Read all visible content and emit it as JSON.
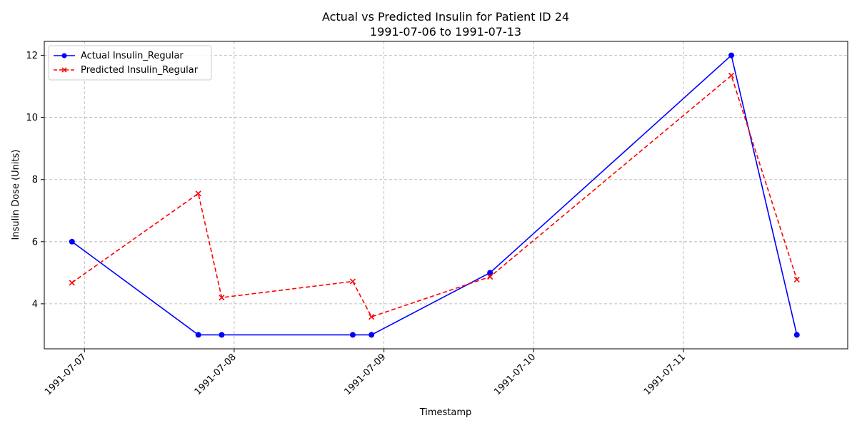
{
  "chart_data": {
    "type": "line",
    "title": "Actual vs Predicted Insulin for Patient ID 24",
    "subtitle": "1991-07-06 to 1991-07-13",
    "xlabel": "Timestamp",
    "ylabel": "Insulin Dose (Units)",
    "xlim": [
      "1991-07-06 17:34",
      "1991-07-12 02:19"
    ],
    "ylim": [
      2.55,
      12.45
    ],
    "x_ticks": [
      "1991-07-07",
      "1991-07-08",
      "1991-07-09",
      "1991-07-10",
      "1991-07-11"
    ],
    "y_ticks": [
      4,
      6,
      8,
      10,
      12
    ],
    "grid": true,
    "legend_position": "top-left",
    "series": [
      {
        "name": "Actual Insulin_Regular",
        "color": "#0000ff",
        "line_style": "solid",
        "marker": "circle",
        "points": [
          {
            "x": "1991-07-06 22:00",
            "y": 6
          },
          {
            "x": "1991-07-07 18:15",
            "y": 3
          },
          {
            "x": "1991-07-07 22:00",
            "y": 3
          },
          {
            "x": "1991-07-08 19:00",
            "y": 3
          },
          {
            "x": "1991-07-08 22:00",
            "y": 3
          },
          {
            "x": "1991-07-09 17:00",
            "y": 5
          },
          {
            "x": "1991-07-11 07:40",
            "y": 12
          },
          {
            "x": "1991-07-11 18:10",
            "y": 3
          }
        ]
      },
      {
        "name": "Predicted Insulin_Regular",
        "color": "#ff0000",
        "line_style": "dashed",
        "marker": "x",
        "points": [
          {
            "x": "1991-07-06 22:00",
            "y": 4.68
          },
          {
            "x": "1991-07-07 18:15",
            "y": 7.55
          },
          {
            "x": "1991-07-07 22:00",
            "y": 4.2
          },
          {
            "x": "1991-07-08 19:00",
            "y": 4.72
          },
          {
            "x": "1991-07-08 22:00",
            "y": 3.58
          },
          {
            "x": "1991-07-09 17:00",
            "y": 4.87
          },
          {
            "x": "1991-07-11 07:40",
            "y": 11.35
          },
          {
            "x": "1991-07-11 18:10",
            "y": 4.78
          }
        ]
      }
    ]
  }
}
